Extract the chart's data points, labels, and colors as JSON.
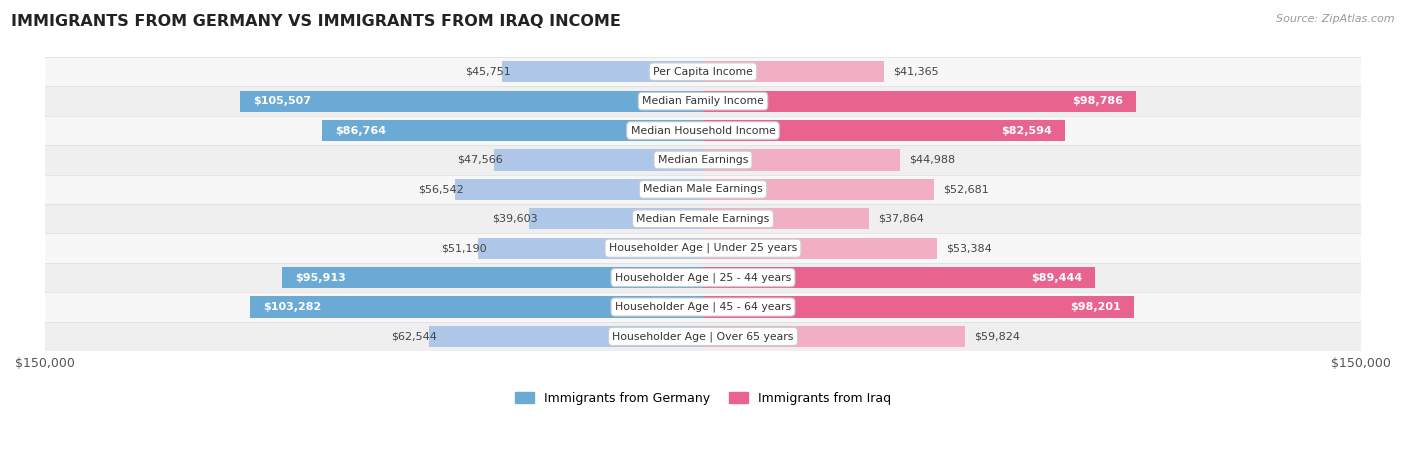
{
  "title": "IMMIGRANTS FROM GERMANY VS IMMIGRANTS FROM IRAQ INCOME",
  "source": "Source: ZipAtlas.com",
  "categories": [
    "Per Capita Income",
    "Median Family Income",
    "Median Household Income",
    "Median Earnings",
    "Median Male Earnings",
    "Median Female Earnings",
    "Householder Age | Under 25 years",
    "Householder Age | 25 - 44 years",
    "Householder Age | 45 - 64 years",
    "Householder Age | Over 65 years"
  ],
  "germany_values": [
    45751,
    105507,
    86764,
    47566,
    56542,
    39603,
    51190,
    95913,
    103282,
    62544
  ],
  "iraq_values": [
    41365,
    98786,
    82594,
    44988,
    52681,
    37864,
    53384,
    89444,
    98201,
    59824
  ],
  "germany_labels": [
    "$45,751",
    "$105,507",
    "$86,764",
    "$47,566",
    "$56,542",
    "$39,603",
    "$51,190",
    "$95,913",
    "$103,282",
    "$62,544"
  ],
  "iraq_labels": [
    "$41,365",
    "$98,786",
    "$82,594",
    "$44,988",
    "$52,681",
    "$37,864",
    "$53,384",
    "$89,444",
    "$98,201",
    "$59,824"
  ],
  "germany_color_light": "#aec6e8",
  "germany_color_dark": "#6aaad4",
  "iraq_color_light": "#f2afc4",
  "iraq_color_dark": "#e8648f",
  "max_value": 150000,
  "background_color": "#ffffff",
  "row_colors": [
    "#f7f7f7",
    "#efefef"
  ],
  "germany_threshold": 80000,
  "iraq_threshold": 80000,
  "legend_germany": "Immigrants from Germany",
  "legend_iraq": "Immigrants from Iraq",
  "x_label_left": "$150,000",
  "x_label_right": "$150,000",
  "label_inside_color": "white",
  "label_outside_color": "#444444"
}
